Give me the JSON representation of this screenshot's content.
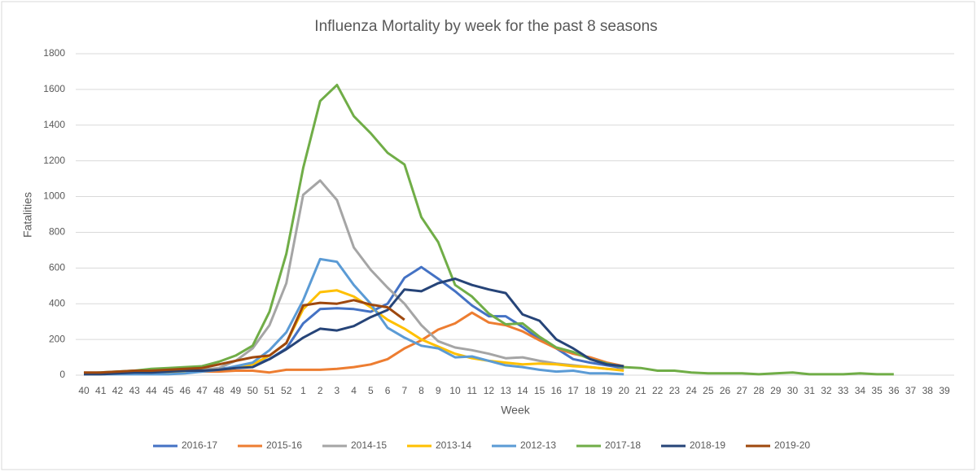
{
  "chart_data": {
    "type": "line",
    "title": "Influenza Mortality by week for the past 8 seasons",
    "x_label": "Week",
    "y_label": "Fatalities",
    "categories": [
      "40",
      "41",
      "42",
      "43",
      "44",
      "45",
      "46",
      "47",
      "48",
      "49",
      "50",
      "51",
      "52",
      "1",
      "2",
      "3",
      "4",
      "5",
      "6",
      "7",
      "8",
      "9",
      "10",
      "11",
      "12",
      "13",
      "14",
      "15",
      "16",
      "17",
      "18",
      "19",
      "20",
      "21",
      "22",
      "23",
      "24",
      "25",
      "26",
      "27",
      "28",
      "29",
      "30",
      "31",
      "32",
      "33",
      "34",
      "35",
      "36",
      "37",
      "38",
      "39"
    ],
    "ylim": [
      0,
      1800
    ],
    "yticks": [
      0,
      200,
      400,
      600,
      800,
      1000,
      1200,
      1400,
      1600,
      1800
    ],
    "grid": true,
    "legend": "bottom",
    "series": [
      {
        "name": "2016-17",
        "color": "#4472c4",
        "values": [
          5,
          5,
          10,
          15,
          20,
          20,
          25,
          30,
          35,
          45,
          60,
          90,
          150,
          290,
          370,
          375,
          370,
          355,
          400,
          545,
          605,
          540,
          470,
          390,
          330,
          330,
          270,
          200,
          150,
          90,
          70,
          55,
          40,
          null,
          null,
          null,
          null,
          null,
          null,
          null,
          null,
          null,
          null,
          null,
          null,
          null,
          null,
          null,
          null,
          null,
          null,
          null
        ]
      },
      {
        "name": "2015-16",
        "color": "#ed7d31",
        "values": [
          5,
          5,
          10,
          10,
          15,
          15,
          15,
          20,
          20,
          25,
          25,
          15,
          30,
          30,
          30,
          35,
          45,
          60,
          90,
          150,
          195,
          255,
          290,
          350,
          295,
          280,
          245,
          195,
          150,
          120,
          100,
          70,
          50,
          null,
          null,
          null,
          null,
          null,
          null,
          null,
          null,
          null,
          null,
          null,
          null,
          null,
          null,
          null,
          null,
          null,
          null,
          null
        ]
      },
      {
        "name": "2014-15",
        "color": "#a5a5a5",
        "values": [
          10,
          10,
          15,
          15,
          20,
          20,
          25,
          30,
          40,
          80,
          150,
          280,
          515,
          1010,
          1090,
          980,
          715,
          590,
          490,
          400,
          280,
          190,
          155,
          140,
          120,
          95,
          100,
          80,
          65,
          55,
          45,
          35,
          30,
          null,
          null,
          null,
          null,
          null,
          null,
          null,
          null,
          null,
          null,
          null,
          null,
          null,
          null,
          null,
          null,
          null,
          null,
          null
        ]
      },
      {
        "name": "2013-14",
        "color": "#ffc000",
        "values": [
          5,
          5,
          10,
          10,
          15,
          15,
          20,
          25,
          30,
          40,
          60,
          110,
          180,
          370,
          465,
          475,
          440,
          380,
          310,
          260,
          200,
          160,
          120,
          95,
          80,
          70,
          60,
          65,
          60,
          50,
          45,
          35,
          25,
          null,
          null,
          null,
          null,
          null,
          null,
          null,
          null,
          null,
          null,
          null,
          null,
          null,
          null,
          null,
          null,
          null,
          null,
          null
        ]
      },
      {
        "name": "2012-13",
        "color": "#5b9bd5",
        "values": [
          5,
          5,
          5,
          5,
          5,
          5,
          10,
          20,
          30,
          50,
          70,
          140,
          240,
          420,
          650,
          635,
          505,
          400,
          265,
          210,
          165,
          150,
          100,
          105,
          80,
          55,
          45,
          30,
          20,
          25,
          10,
          10,
          5,
          null,
          null,
          null,
          null,
          null,
          null,
          null,
          null,
          null,
          null,
          null,
          null,
          null,
          null,
          null,
          null,
          null,
          null,
          null
        ]
      },
      {
        "name": "2017-18",
        "color": "#70ad47",
        "values": [
          10,
          15,
          20,
          25,
          35,
          40,
          45,
          50,
          75,
          110,
          165,
          355,
          680,
          1160,
          1535,
          1625,
          1450,
          1355,
          1245,
          1180,
          885,
          745,
          505,
          440,
          345,
          285,
          290,
          215,
          155,
          130,
          90,
          65,
          45,
          40,
          25,
          25,
          15,
          10,
          10,
          10,
          5,
          10,
          15,
          5,
          5,
          5,
          10,
          5,
          5,
          null,
          null,
          null
        ]
      },
      {
        "name": "2018-19",
        "color": "#264478",
        "values": [
          5,
          5,
          10,
          15,
          15,
          20,
          25,
          25,
          30,
          40,
          45,
          90,
          145,
          210,
          260,
          250,
          275,
          325,
          365,
          480,
          470,
          515,
          540,
          505,
          480,
          460,
          340,
          305,
          200,
          150,
          90,
          60,
          50,
          null,
          null,
          null,
          null,
          null,
          null,
          null,
          null,
          null,
          null,
          null,
          null,
          null,
          null,
          null,
          null,
          null,
          null,
          null
        ]
      },
      {
        "name": "2019-20",
        "color": "#9e480e",
        "values": [
          15,
          15,
          20,
          25,
          25,
          30,
          35,
          40,
          60,
          80,
          100,
          110,
          180,
          390,
          405,
          400,
          420,
          395,
          380,
          310,
          null,
          null,
          null,
          null,
          null,
          null,
          null,
          null,
          null,
          null,
          null,
          null,
          null,
          null,
          null,
          null,
          null,
          null,
          null,
          null,
          null,
          null,
          null,
          null,
          null,
          null,
          null,
          null,
          null,
          null,
          null,
          null
        ]
      }
    ]
  }
}
